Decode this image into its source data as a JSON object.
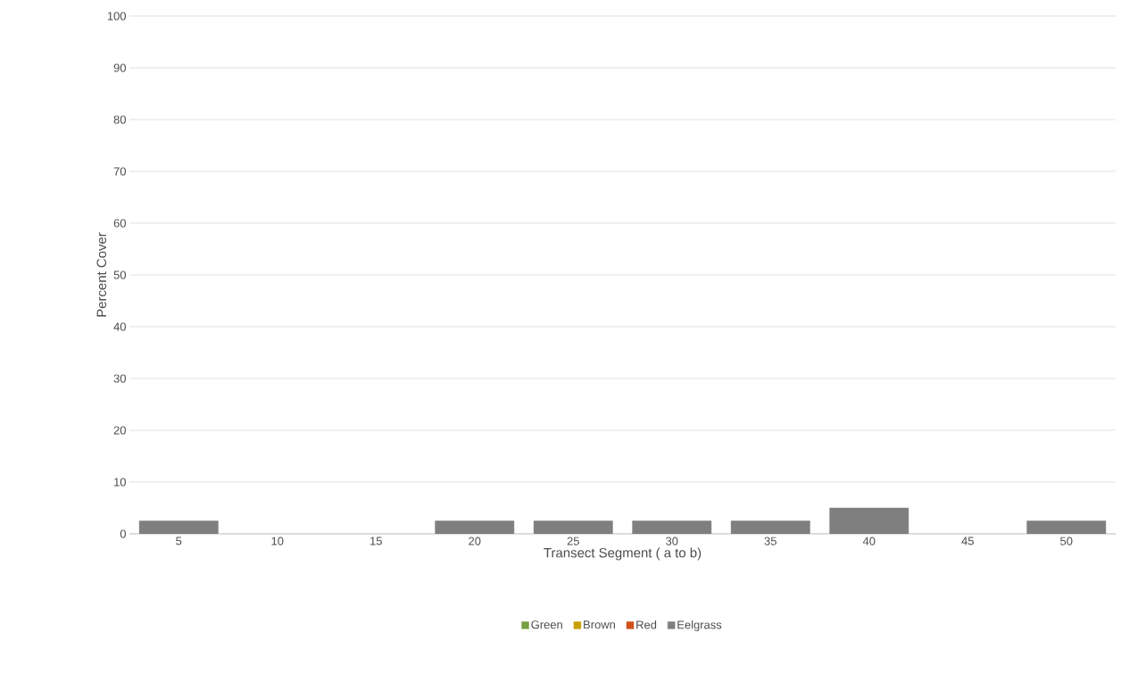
{
  "chart_data": {
    "type": "bar",
    "stacked": true,
    "xlabel": "Transect Segment ( a to b)",
    "ylabel": "Percent Cover",
    "categories": [
      "5",
      "10",
      "15",
      "20",
      "25",
      "30",
      "35",
      "40",
      "45",
      "50"
    ],
    "series": [
      {
        "name": "Green",
        "color": "#77a043",
        "values": [
          0,
          0,
          0,
          0,
          0,
          0,
          0,
          0,
          0,
          0
        ]
      },
      {
        "name": "Brown",
        "color": "#c9a000",
        "values": [
          0,
          0,
          0,
          0,
          0,
          0,
          0,
          0,
          0,
          0
        ]
      },
      {
        "name": "Red",
        "color": "#d0501a",
        "values": [
          0,
          0,
          0,
          0,
          0,
          0,
          0,
          0,
          0,
          0
        ]
      },
      {
        "name": "Eelgrass",
        "color": "#7f7f7f",
        "values": [
          2.5,
          0,
          0,
          2.5,
          2.5,
          2.5,
          2.5,
          5,
          0,
          2.5
        ]
      }
    ],
    "ylim": [
      0,
      100
    ],
    "yticks": [
      0,
      10,
      20,
      30,
      40,
      50,
      60,
      70,
      80,
      90,
      100
    ],
    "grid": "y",
    "legend": "bottom"
  }
}
